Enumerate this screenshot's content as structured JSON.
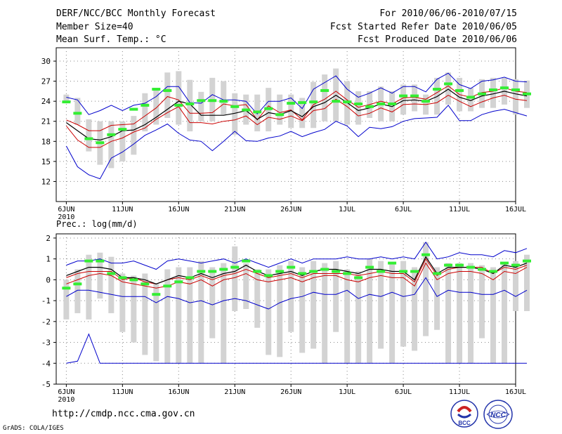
{
  "header": {
    "left": [
      "DERF/NCC/BCC Monthly Forecast",
      "Member Size=40",
      "Mean Surf. Temp.: °C"
    ],
    "right": [
      "For 2010/06/06-2010/07/15",
      "Fcst Started Refer Date 2010/06/05",
      "Fcst Produced Date 2010/06/06"
    ]
  },
  "footer": {
    "url": "http://cmdp.ncc.cma.gov.cn",
    "credit": "GrADS: COLA/IGES",
    "logo_left_text": "BCC",
    "logo_right_text": "NCC"
  },
  "colors": {
    "bar": "#d3d3d3",
    "mean": "#000000",
    "outer_bound": "#0000cc",
    "inner_bound": "#cc0000",
    "marker": "#33ee33",
    "grid": "#888888"
  },
  "chart_data": [
    {
      "type": "line",
      "title": "Mean Surf. Temp.: °C",
      "x_tick_labels": [
        "6JUN",
        "11JUN",
        "16JUN",
        "21JUN",
        "26JUN",
        "1JUL",
        "6JUL",
        "11JUL",
        "16JUL"
      ],
      "year_label": "2010",
      "x_tick_days": [
        0,
        5,
        10,
        15,
        20,
        25,
        30,
        35,
        40
      ],
      "x_range": [
        -0.9,
        40
      ],
      "ylim": [
        9,
        32
      ],
      "yticks": [
        12,
        15,
        18,
        21,
        24,
        27,
        30
      ],
      "grid": true,
      "series": [
        {
          "name": "mean",
          "values": [
            20.8,
            19.6,
            18.4,
            18.2,
            18.7,
            19.6,
            19.7,
            20.5,
            21.6,
            22.8,
            24.0,
            23.6,
            21.9,
            21.9,
            21.9,
            22.2,
            22.6,
            21.3,
            22.3,
            22.0,
            22.6,
            21.7,
            23.2,
            23.8,
            24.9,
            23.8,
            22.6,
            23.0,
            23.6,
            23.2,
            24.1,
            24.2,
            24.0,
            24.7,
            25.8,
            24.6,
            24.1,
            24.8,
            25.1,
            25.5,
            25.1,
            24.8
          ]
        },
        {
          "name": "upper_extreme",
          "values": [
            24.6,
            24.2,
            22.0,
            22.6,
            23.4,
            22.6,
            23.4,
            23.7,
            24.7,
            26.2,
            26.2,
            23.8,
            23.7,
            25.0,
            24.2,
            24.2,
            24.0,
            22.1,
            24.0,
            24.0,
            24.5,
            22.9,
            25.8,
            26.8,
            27.8,
            25.8,
            24.6,
            25.2,
            26.0,
            25.2,
            26.2,
            26.2,
            25.4,
            27.3,
            28.2,
            26.5,
            25.9,
            27.0,
            27.2,
            27.6,
            27.0,
            26.9
          ]
        },
        {
          "name": "upper_quartile",
          "values": [
            21.2,
            20.5,
            19.6,
            19.6,
            20.4,
            20.5,
            20.6,
            21.8,
            23.0,
            24.7,
            24.2,
            22.2,
            22.2,
            22.3,
            23.6,
            23.3,
            23.5,
            21.2,
            23.3,
            22.3,
            22.7,
            21.2,
            23.5,
            24.3,
            25.5,
            24.2,
            23.1,
            23.5,
            24.0,
            23.6,
            24.5,
            24.6,
            24.3,
            25.3,
            26.3,
            25.0,
            24.6,
            25.3,
            25.5,
            26.0,
            25.5,
            25.3
          ]
        },
        {
          "name": "lower_quartile",
          "values": [
            20.3,
            18.2,
            17.1,
            17.1,
            18.0,
            18.5,
            19.4,
            20.0,
            21.3,
            22.3,
            23.2,
            20.8,
            20.8,
            20.6,
            21.0,
            21.2,
            21.8,
            20.5,
            21.6,
            21.3,
            21.8,
            21.1,
            22.6,
            22.9,
            24.3,
            23.2,
            21.8,
            22.2,
            23.0,
            22.4,
            23.5,
            23.6,
            23.5,
            23.8,
            24.9,
            24.0,
            23.2,
            23.9,
            24.5,
            24.9,
            24.3,
            24.1
          ]
        },
        {
          "name": "lower_extreme",
          "values": [
            17.3,
            14.2,
            13.0,
            12.4,
            15.5,
            16.4,
            17.6,
            18.9,
            19.7,
            20.6,
            19.2,
            18.2,
            18.0,
            16.6,
            18.0,
            19.5,
            18.1,
            18.0,
            18.5,
            18.8,
            19.5,
            18.7,
            19.3,
            19.8,
            21.0,
            20.3,
            18.7,
            20.1,
            19.9,
            20.2,
            21.0,
            21.4,
            21.5,
            21.6,
            23.4,
            21.1,
            21.1,
            22.0,
            22.5,
            22.8,
            22.3,
            21.8
          ]
        },
        {
          "name": "observed_marker",
          "values": [
            23.9,
            22.2,
            18.4,
            17.8,
            19.0,
            19.8,
            22.8,
            23.4,
            25.8,
            25.6,
            23.4,
            23.6,
            24.1,
            24.1,
            24.0,
            23.2,
            22.7,
            22.4,
            22.9,
            22.0,
            23.7,
            23.8,
            23.9,
            25.6,
            24.0,
            23.9,
            23.6,
            23.2,
            23.6,
            23.6,
            24.8,
            24.8,
            24.0,
            25.8,
            26.6,
            25.6,
            24.6,
            25.1,
            25.7,
            26.0,
            25.7,
            25.1
          ]
        },
        {
          "name": "spread_top",
          "values": [
            25.0,
            24.5,
            21.3,
            21.0,
            21.0,
            21.0,
            21.8,
            25.2,
            25.8,
            28.3,
            28.5,
            27.2,
            25.4,
            27.5,
            27.0,
            25.2,
            25.0,
            25.0,
            26.0,
            25.0,
            25.0,
            24.5,
            26.9,
            28.0,
            28.9,
            27.0,
            25.5,
            25.5,
            26.2,
            25.5,
            26.5,
            26.5,
            25.0,
            27.5,
            28.3,
            27.5,
            26.0,
            27.3,
            27.5,
            27.5,
            27.3,
            27.1
          ]
        },
        {
          "name": "spread_bottom",
          "values": [
            24.0,
            20.5,
            16.5,
            14.5,
            14.0,
            15.0,
            16.0,
            19.5,
            20.5,
            21.5,
            20.5,
            19.5,
            21.0,
            21.0,
            22.0,
            19.0,
            20.5,
            19.5,
            19.5,
            20.5,
            20.0,
            20.0,
            20.0,
            21.0,
            21.0,
            20.5,
            20.5,
            21.5,
            21.0,
            21.0,
            22.0,
            22.5,
            22.0,
            22.0,
            23.5,
            22.5,
            22.5,
            23.0,
            23.0,
            23.5,
            22.0,
            23.0
          ]
        }
      ]
    },
    {
      "type": "line",
      "title": "Prec.: log(mm/d)",
      "x_tick_labels": [
        "6JUN",
        "11JUN",
        "16JUN",
        "21JUN",
        "26JUN",
        "1JUL",
        "6JUL",
        "11JUL",
        "16JUL"
      ],
      "year_label": "2010",
      "x_tick_days": [
        0,
        5,
        10,
        15,
        20,
        25,
        30,
        35,
        40
      ],
      "x_range": [
        -0.9,
        40
      ],
      "ylim": [
        -5,
        2.2
      ],
      "yticks": [
        -5,
        -4,
        -3,
        -2,
        -1,
        0,
        1,
        2
      ],
      "grid": true,
      "series": [
        {
          "name": "mean",
          "values": [
            0.2,
            0.4,
            0.6,
            0.6,
            0.5,
            0.1,
            0.1,
            0.0,
            -0.2,
            0.0,
            0.2,
            0.1,
            0.3,
            0.1,
            0.3,
            0.4,
            0.7,
            0.4,
            0.2,
            0.3,
            0.4,
            0.2,
            0.4,
            0.5,
            0.5,
            0.4,
            0.3,
            0.5,
            0.5,
            0.4,
            0.4,
            0.0,
            1.1,
            0.3,
            0.6,
            0.6,
            0.6,
            0.5,
            0.3,
            0.7,
            0.6,
            0.8
          ]
        },
        {
          "name": "upper_extreme",
          "values": [
            0.7,
            0.9,
            0.9,
            1.0,
            0.8,
            0.8,
            0.9,
            0.7,
            0.5,
            0.9,
            1.0,
            0.9,
            0.8,
            0.9,
            1.0,
            0.8,
            1.0,
            0.8,
            0.6,
            0.8,
            1.0,
            0.8,
            1.0,
            1.0,
            1.0,
            1.1,
            1.0,
            1.0,
            1.1,
            1.0,
            1.1,
            1.0,
            1.8,
            1.0,
            1.1,
            1.3,
            1.2,
            1.2,
            1.1,
            1.4,
            1.3,
            1.5
          ]
        },
        {
          "name": "upper_quartile",
          "values": [
            0.1,
            0.3,
            0.4,
            0.4,
            0.4,
            0.0,
            0.1,
            -0.1,
            -0.2,
            0.0,
            0.1,
            0.0,
            0.2,
            0.0,
            0.2,
            0.3,
            0.5,
            0.3,
            0.1,
            0.2,
            0.3,
            0.1,
            0.3,
            0.3,
            0.3,
            0.3,
            0.2,
            0.3,
            0.4,
            0.3,
            0.3,
            -0.1,
            1.0,
            0.2,
            0.5,
            0.6,
            0.6,
            0.6,
            0.3,
            0.6,
            0.5,
            0.7
          ]
        },
        {
          "name": "lower_quartile",
          "values": [
            -0.2,
            0.0,
            0.2,
            0.3,
            0.2,
            -0.1,
            -0.2,
            -0.3,
            -0.4,
            -0.3,
            -0.1,
            -0.2,
            0.0,
            -0.3,
            0.0,
            0.1,
            0.3,
            0.0,
            -0.1,
            0.0,
            0.1,
            -0.1,
            0.1,
            0.2,
            0.2,
            0.0,
            -0.1,
            0.1,
            0.2,
            0.1,
            0.1,
            -0.3,
            0.8,
            0.0,
            0.3,
            0.4,
            0.4,
            0.3,
            0.0,
            0.4,
            0.3,
            0.6
          ]
        },
        {
          "name": "lower_extreme",
          "values": [
            -0.8,
            -0.5,
            -0.5,
            -0.6,
            -0.7,
            -0.8,
            -0.8,
            -0.8,
            -1.1,
            -0.8,
            -0.9,
            -1.1,
            -1.0,
            -1.2,
            -1.0,
            -0.9,
            -1.0,
            -1.2,
            -1.4,
            -1.1,
            -0.9,
            -0.8,
            -0.6,
            -0.7,
            -0.7,
            -0.5,
            -0.9,
            -0.7,
            -0.8,
            -0.6,
            -0.8,
            -0.7,
            0.1,
            -0.8,
            -0.5,
            -0.6,
            -0.6,
            -0.7,
            -0.7,
            -0.5,
            -0.8,
            -0.5
          ]
        },
        {
          "name": "outlier_extreme",
          "values": [
            -4.0,
            -3.9,
            -2.6,
            -4.0,
            -4.0,
            -4.0,
            -4.0,
            -4.0,
            -4.0,
            -4.0,
            -4.0,
            -4.0,
            -4.0,
            -4.0,
            -4.0,
            -4.0,
            -4.0,
            -4.0,
            -4.0,
            -4.0,
            -4.0,
            -4.0,
            -4.0,
            -4.0,
            -4.0,
            -4.0,
            -4.0,
            -4.0,
            -4.0,
            -4.0,
            -4.0,
            -4.0,
            -4.0,
            -4.0,
            -4.0,
            -4.0,
            -4.0,
            -4.0,
            -4.0,
            -4.0,
            -4.0,
            -4.0
          ]
        },
        {
          "name": "observed_marker",
          "values": [
            -0.4,
            -0.2,
            0.9,
            0.9,
            0.3,
            0.1,
            0.0,
            -0.2,
            -0.7,
            -0.3,
            -0.1,
            0.1,
            0.4,
            0.4,
            0.5,
            0.6,
            0.9,
            0.4,
            0.2,
            0.4,
            0.6,
            0.3,
            0.4,
            0.5,
            0.4,
            0.3,
            0.1,
            0.6,
            0.4,
            0.8,
            0.4,
            0.4,
            1.2,
            0.3,
            0.7,
            0.7,
            0.6,
            0.5,
            0.4,
            0.8,
            0.7,
            0.9
          ]
        },
        {
          "name": "spread_top",
          "values": [
            0.0,
            0.5,
            1.2,
            1.3,
            1.1,
            0.3,
            0.2,
            0.3,
            -0.2,
            0.5,
            0.6,
            0.6,
            0.9,
            0.6,
            0.8,
            1.6,
            0.8,
            0.5,
            0.5,
            0.7,
            0.9,
            0.6,
            0.9,
            0.8,
            0.9,
            0.5,
            0.4,
            1.0,
            0.9,
            0.8,
            0.9,
            0.6,
            1.8,
            0.6,
            0.8,
            0.8,
            0.8,
            0.7,
            0.6,
            0.8,
            0.9,
            1.2
          ]
        },
        {
          "name": "spread_bottom",
          "values": [
            -1.9,
            -1.6,
            -1.9,
            -0.9,
            -1.6,
            -2.5,
            -3.0,
            -3.6,
            -3.9,
            -4.0,
            -4.0,
            -4.0,
            -4.0,
            -2.8,
            -4.0,
            -1.5,
            -1.4,
            -2.3,
            -3.6,
            -3.7,
            -2.5,
            -3.5,
            -3.3,
            -4.0,
            -2.5,
            -4.0,
            -4.0,
            -4.0,
            -3.3,
            -4.0,
            -3.2,
            -3.4,
            -2.7,
            -2.4,
            -4.0,
            -4.0,
            -4.0,
            -2.8,
            -4.0,
            -4.0,
            -1.5,
            -1.5
          ]
        }
      ]
    }
  ]
}
